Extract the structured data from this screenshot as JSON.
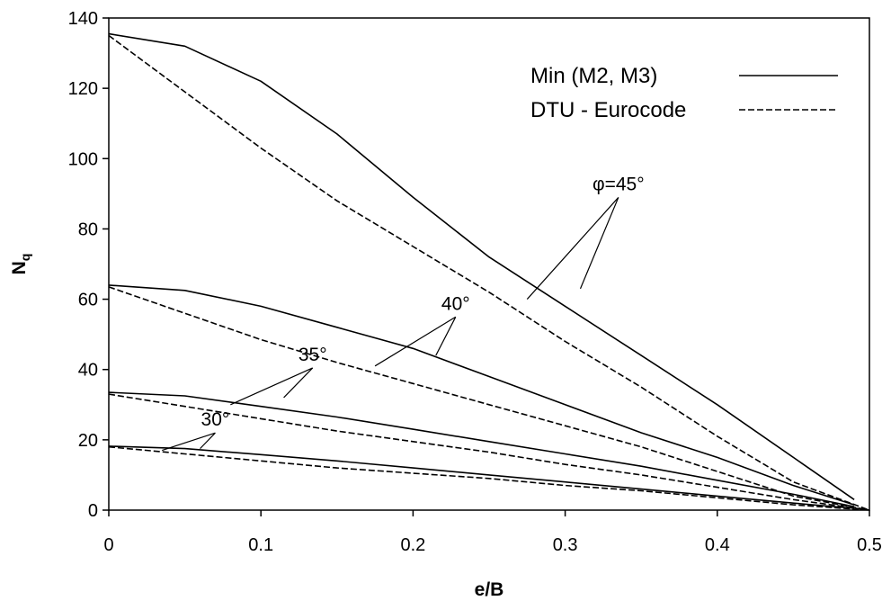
{
  "chart_data": {
    "type": "line",
    "title": "",
    "xlabel": "e/B",
    "ylabel": "N",
    "ylabel_subscript": "q",
    "xlim": [
      0,
      0.5
    ],
    "ylim": [
      0,
      140
    ],
    "x_ticks": [
      0,
      0.1,
      0.2,
      0.3,
      0.4,
      0.5
    ],
    "x_tick_labels": [
      "0",
      "0.1",
      "0.2",
      "0.3",
      "0.4",
      "0.5"
    ],
    "y_ticks": [
      0,
      20,
      40,
      60,
      80,
      100,
      120,
      140
    ],
    "y_tick_labels": [
      "0",
      "20",
      "40",
      "60",
      "80",
      "100",
      "120",
      "140"
    ],
    "grid": false,
    "legend_position": "top-right",
    "legend": [
      {
        "label": "Min (M2, M3)",
        "style": "solid"
      },
      {
        "label": "DTU - Eurocode",
        "style": "dashed"
      }
    ],
    "series": [
      {
        "group": "Min (M2, M3)",
        "phi": "45",
        "style": "solid",
        "x": [
          0,
          0.05,
          0.1,
          0.15,
          0.2,
          0.25,
          0.3,
          0.35,
          0.4,
          0.45,
          0.49
        ],
        "y": [
          135.5,
          132,
          122,
          107,
          89,
          72,
          58,
          44,
          30,
          15,
          3
        ]
      },
      {
        "group": "DTU - Eurocode",
        "phi": "45",
        "style": "dashed",
        "x": [
          0,
          0.05,
          0.1,
          0.15,
          0.2,
          0.25,
          0.3,
          0.35,
          0.4,
          0.45,
          0.5
        ],
        "y": [
          135,
          119,
          103,
          88,
          75,
          62,
          48,
          35,
          21,
          8,
          0
        ]
      },
      {
        "group": "Min (M2, M3)",
        "phi": "40",
        "style": "solid",
        "x": [
          0,
          0.05,
          0.1,
          0.15,
          0.2,
          0.25,
          0.3,
          0.35,
          0.4,
          0.45,
          0.49
        ],
        "y": [
          64,
          62.5,
          58,
          52,
          46,
          38,
          30,
          22,
          15,
          7,
          1.5
        ]
      },
      {
        "group": "DTU - Eurocode",
        "phi": "40",
        "style": "dashed",
        "x": [
          0,
          0.05,
          0.1,
          0.15,
          0.2,
          0.25,
          0.3,
          0.35,
          0.4,
          0.45,
          0.5
        ],
        "y": [
          63.5,
          56,
          48.5,
          42,
          36,
          30,
          24,
          18,
          11,
          4,
          0
        ]
      },
      {
        "group": "Min (M2, M3)",
        "phi": "35",
        "style": "solid",
        "x": [
          0,
          0.05,
          0.1,
          0.15,
          0.2,
          0.25,
          0.3,
          0.35,
          0.4,
          0.45,
          0.49
        ],
        "y": [
          33.5,
          32.5,
          29.5,
          26.5,
          23,
          19.5,
          16,
          12.5,
          8.5,
          4.5,
          1
        ]
      },
      {
        "group": "DTU - Eurocode",
        "phi": "35",
        "style": "dashed",
        "x": [
          0,
          0.05,
          0.1,
          0.15,
          0.2,
          0.25,
          0.3,
          0.35,
          0.4,
          0.45,
          0.5
        ],
        "y": [
          33,
          29.5,
          26,
          22.5,
          19.5,
          16.5,
          13,
          10,
          6.5,
          3,
          0
        ]
      },
      {
        "group": "Min (M2, M3)",
        "phi": "30",
        "style": "solid",
        "x": [
          0,
          0.05,
          0.1,
          0.15,
          0.2,
          0.25,
          0.3,
          0.35,
          0.4,
          0.45,
          0.49
        ],
        "y": [
          18.2,
          17.5,
          15.8,
          14,
          12,
          10,
          8,
          6,
          4,
          2,
          0.5
        ]
      },
      {
        "group": "DTU - Eurocode",
        "phi": "30",
        "style": "dashed",
        "x": [
          0,
          0.05,
          0.1,
          0.15,
          0.2,
          0.25,
          0.3,
          0.35,
          0.4,
          0.45,
          0.5
        ],
        "y": [
          18,
          16,
          14,
          12,
          10.5,
          9,
          7,
          5.5,
          3.5,
          1.5,
          0
        ]
      }
    ],
    "annotations": [
      {
        "text": "φ=45°",
        "anchor": [
          0.335,
          91
        ],
        "targets": [
          [
            0.275,
            60
          ],
          [
            0.31,
            63
          ]
        ]
      },
      {
        "text": "40°",
        "anchor": [
          0.228,
          57
        ],
        "targets": [
          [
            0.175,
            41
          ],
          [
            0.215,
            44
          ]
        ]
      },
      {
        "text": "35°",
        "anchor": [
          0.134,
          42.5
        ],
        "targets": [
          [
            0.08,
            30
          ],
          [
            0.115,
            32
          ]
        ]
      },
      {
        "text": "30°",
        "anchor": [
          0.07,
          24
        ],
        "targets": [
          [
            0.035,
            17
          ],
          [
            0.06,
            17.5
          ]
        ]
      }
    ]
  }
}
